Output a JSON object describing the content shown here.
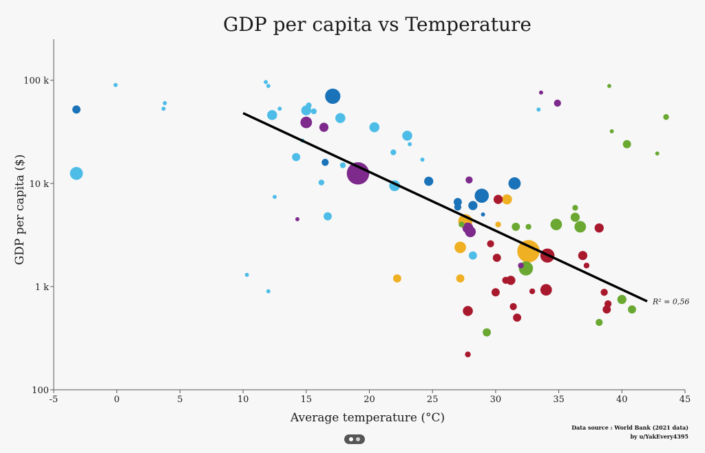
{
  "chart_data": {
    "type": "scatter",
    "title": "GDP per capita vs Temperature",
    "xlabel": "Average temperature (°C)",
    "ylabel": "GDP per capita ($)",
    "xlim": [
      -5,
      45
    ],
    "ylim": [
      100,
      250000
    ],
    "y_scale": "log",
    "x_ticks": [
      "-5",
      "0",
      "5",
      "10",
      "15",
      "20",
      "25",
      "30",
      "35",
      "40",
      "45"
    ],
    "y_ticks": [
      {
        "value": 100,
        "label": "100"
      },
      {
        "value": 1000,
        "label": "1 k"
      },
      {
        "value": 10000,
        "label": "10 k"
      },
      {
        "value": 100000,
        "label": "100 k"
      }
    ],
    "grid": false,
    "legend": null,
    "colors": {
      "light_blue": "#4dbde8",
      "dark_blue": "#1a72b8",
      "purple": "#7d2a8c",
      "green": "#6aa832",
      "orange": "#f0b024",
      "red": "#a8192d",
      "trend": "#000000"
    },
    "trendline": {
      "x": [
        10,
        42
      ],
      "y": [
        48000,
        720
      ],
      "label": "R² = 0,56"
    },
    "points": [
      {
        "x": -3.2,
        "y": 52000,
        "size": 2,
        "color": "dark_blue"
      },
      {
        "x": -3.2,
        "y": 12500,
        "size": 5,
        "color": "light_blue"
      },
      {
        "x": -0.1,
        "y": 90000,
        "size": 0.5,
        "color": "light_blue"
      },
      {
        "x": 3.8,
        "y": 60000,
        "size": 0.5,
        "color": "light_blue"
      },
      {
        "x": 3.7,
        "y": 53000,
        "size": 0.5,
        "color": "light_blue"
      },
      {
        "x": 10.3,
        "y": 1300,
        "size": 0.5,
        "color": "light_blue"
      },
      {
        "x": 11.8,
        "y": 96000,
        "size": 0.5,
        "color": "light_blue"
      },
      {
        "x": 12.0,
        "y": 88000,
        "size": 0.5,
        "color": "light_blue"
      },
      {
        "x": 12.3,
        "y": 46000,
        "size": 3,
        "color": "light_blue"
      },
      {
        "x": 12.5,
        "y": 7400,
        "size": 0.5,
        "color": "light_blue"
      },
      {
        "x": 12.9,
        "y": 53000,
        "size": 0.5,
        "color": "light_blue"
      },
      {
        "x": 12.0,
        "y": 900,
        "size": 0.5,
        "color": "light_blue"
      },
      {
        "x": 14.2,
        "y": 18000,
        "size": 2,
        "color": "light_blue"
      },
      {
        "x": 14.3,
        "y": 4500,
        "size": 0.5,
        "color": "purple"
      },
      {
        "x": 14.7,
        "y": 26000,
        "size": 0.5,
        "color": "light_blue"
      },
      {
        "x": 15.0,
        "y": 51000,
        "size": 3,
        "color": "light_blue"
      },
      {
        "x": 15.0,
        "y": 39000,
        "size": 4,
        "color": "purple"
      },
      {
        "x": 15.2,
        "y": 57000,
        "size": 1,
        "color": "light_blue"
      },
      {
        "x": 15.6,
        "y": 50000,
        "size": 1,
        "color": "light_blue"
      },
      {
        "x": 16.2,
        "y": 10200,
        "size": 1,
        "color": "light_blue"
      },
      {
        "x": 16.4,
        "y": 35000,
        "size": 2.5,
        "color": "purple"
      },
      {
        "x": 16.5,
        "y": 16000,
        "size": 1.5,
        "color": "dark_blue"
      },
      {
        "x": 16.7,
        "y": 4800,
        "size": 2,
        "color": "light_blue"
      },
      {
        "x": 17.1,
        "y": 70000,
        "size": 7,
        "color": "dark_blue"
      },
      {
        "x": 17.7,
        "y": 43000,
        "size": 3,
        "color": "light_blue"
      },
      {
        "x": 17.9,
        "y": 15000,
        "size": 1,
        "color": "light_blue"
      },
      {
        "x": 19.1,
        "y": 12500,
        "size": 15,
        "color": "purple"
      },
      {
        "x": 20.4,
        "y": 35000,
        "size": 3,
        "color": "light_blue"
      },
      {
        "x": 21.9,
        "y": 20000,
        "size": 1,
        "color": "light_blue"
      },
      {
        "x": 22.0,
        "y": 9500,
        "size": 3.5,
        "color": "light_blue"
      },
      {
        "x": 22.2,
        "y": 1200,
        "size": 2,
        "color": "orange"
      },
      {
        "x": 23.0,
        "y": 29000,
        "size": 3,
        "color": "light_blue"
      },
      {
        "x": 23.2,
        "y": 24000,
        "size": 0.5,
        "color": "light_blue"
      },
      {
        "x": 24.2,
        "y": 17000,
        "size": 0.5,
        "color": "light_blue"
      },
      {
        "x": 24.7,
        "y": 10500,
        "size": 2.5,
        "color": "dark_blue"
      },
      {
        "x": 27.0,
        "y": 6600,
        "size": 2,
        "color": "dark_blue"
      },
      {
        "x": 27.0,
        "y": 5900,
        "size": 1.5,
        "color": "dark_blue"
      },
      {
        "x": 27.3,
        "y": 4000,
        "size": 1,
        "color": "green"
      },
      {
        "x": 27.2,
        "y": 2400,
        "size": 4,
        "color": "orange"
      },
      {
        "x": 27.2,
        "y": 1200,
        "size": 2,
        "color": "orange"
      },
      {
        "x": 27.6,
        "y": 4300,
        "size": 6,
        "color": "orange"
      },
      {
        "x": 27.8,
        "y": 3700,
        "size": 3.5,
        "color": "purple"
      },
      {
        "x": 28.0,
        "y": 3400,
        "size": 3.5,
        "color": "purple"
      },
      {
        "x": 27.9,
        "y": 10800,
        "size": 1.5,
        "color": "purple"
      },
      {
        "x": 28.2,
        "y": 6100,
        "size": 2.5,
        "color": "dark_blue"
      },
      {
        "x": 28.2,
        "y": 2000,
        "size": 2,
        "color": "light_blue"
      },
      {
        "x": 27.8,
        "y": 580,
        "size": 3,
        "color": "red"
      },
      {
        "x": 27.8,
        "y": 220,
        "size": 1,
        "color": "red"
      },
      {
        "x": 28.9,
        "y": 7600,
        "size": 6,
        "color": "dark_blue"
      },
      {
        "x": 29.0,
        "y": 5000,
        "size": 0.5,
        "color": "dark_blue"
      },
      {
        "x": 29.3,
        "y": 360,
        "size": 2,
        "color": "green"
      },
      {
        "x": 29.6,
        "y": 2600,
        "size": 1.5,
        "color": "red"
      },
      {
        "x": 30.2,
        "y": 7000,
        "size": 2.5,
        "color": "red"
      },
      {
        "x": 30.2,
        "y": 4000,
        "size": 1,
        "color": "orange"
      },
      {
        "x": 30.9,
        "y": 7000,
        "size": 3,
        "color": "orange"
      },
      {
        "x": 30.1,
        "y": 1900,
        "size": 2,
        "color": "red"
      },
      {
        "x": 30.0,
        "y": 880,
        "size": 2,
        "color": "red"
      },
      {
        "x": 30.8,
        "y": 1150,
        "size": 1.5,
        "color": "red"
      },
      {
        "x": 31.2,
        "y": 1150,
        "size": 2.5,
        "color": "red"
      },
      {
        "x": 31.4,
        "y": 640,
        "size": 1.5,
        "color": "red"
      },
      {
        "x": 31.7,
        "y": 500,
        "size": 2,
        "color": "red"
      },
      {
        "x": 31.5,
        "y": 10000,
        "size": 4.5,
        "color": "dark_blue"
      },
      {
        "x": 31.6,
        "y": 3800,
        "size": 2,
        "color": "green"
      },
      {
        "x": 32.0,
        "y": 1600,
        "size": 1,
        "color": "purple"
      },
      {
        "x": 32.6,
        "y": 2200,
        "size": 15,
        "color": "orange"
      },
      {
        "x": 32.4,
        "y": 1500,
        "size": 6,
        "color": "green"
      },
      {
        "x": 32.6,
        "y": 3800,
        "size": 1,
        "color": "green"
      },
      {
        "x": 32.9,
        "y": 900,
        "size": 1,
        "color": "red"
      },
      {
        "x": 33.4,
        "y": 52000,
        "size": 0.5,
        "color": "light_blue"
      },
      {
        "x": 33.6,
        "y": 76000,
        "size": 0.5,
        "color": "purple"
      },
      {
        "x": 34.1,
        "y": 2000,
        "size": 6,
        "color": "red"
      },
      {
        "x": 34.0,
        "y": 930,
        "size": 4,
        "color": "red"
      },
      {
        "x": 34.8,
        "y": 4000,
        "size": 4,
        "color": "green"
      },
      {
        "x": 34.9,
        "y": 60000,
        "size": 1.5,
        "color": "purple"
      },
      {
        "x": 36.3,
        "y": 4700,
        "size": 2.5,
        "color": "green"
      },
      {
        "x": 36.3,
        "y": 5800,
        "size": 1,
        "color": "green"
      },
      {
        "x": 36.7,
        "y": 3800,
        "size": 4,
        "color": "green"
      },
      {
        "x": 36.9,
        "y": 2000,
        "size": 2.5,
        "color": "red"
      },
      {
        "x": 37.2,
        "y": 1600,
        "size": 1,
        "color": "red"
      },
      {
        "x": 38.2,
        "y": 3700,
        "size": 2.5,
        "color": "red"
      },
      {
        "x": 38.2,
        "y": 450,
        "size": 1.5,
        "color": "green"
      },
      {
        "x": 38.6,
        "y": 880,
        "size": 1.5,
        "color": "red"
      },
      {
        "x": 38.8,
        "y": 600,
        "size": 2,
        "color": "red"
      },
      {
        "x": 38.9,
        "y": 680,
        "size": 1.5,
        "color": "red"
      },
      {
        "x": 39.0,
        "y": 88000,
        "size": 0.5,
        "color": "green"
      },
      {
        "x": 39.2,
        "y": 32000,
        "size": 0.5,
        "color": "green"
      },
      {
        "x": 40.0,
        "y": 750,
        "size": 2.5,
        "color": "green"
      },
      {
        "x": 40.4,
        "y": 24000,
        "size": 2,
        "color": "green"
      },
      {
        "x": 40.8,
        "y": 600,
        "size": 2,
        "color": "green"
      },
      {
        "x": 42.8,
        "y": 19500,
        "size": 0.5,
        "color": "green"
      },
      {
        "x": 43.5,
        "y": 44000,
        "size": 1,
        "color": "green"
      }
    ]
  },
  "credits": {
    "source": "Data source : World Bank (2021 data)",
    "author": "by u/YakEvery4395"
  }
}
